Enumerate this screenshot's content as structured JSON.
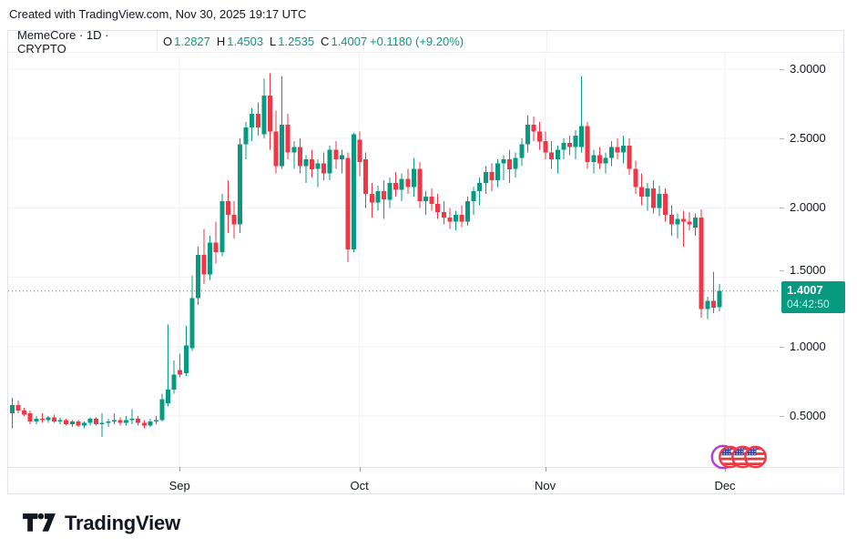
{
  "caption": "Created with TradingView.com, Nov 30, 2025 19:17 UTC",
  "legend": {
    "symbol": "MemeCore · 1D · CRYPTO",
    "ohlc": [
      {
        "label": "O",
        "value": "1.2827"
      },
      {
        "label": "H",
        "value": "1.4503"
      },
      {
        "label": "L",
        "value": "1.2535"
      },
      {
        "label": "C",
        "value": "1.4007"
      }
    ],
    "change": "+0.1180 (+9.20%)"
  },
  "price_scale": {
    "labels": [
      "3.0000",
      "2.5000",
      "2.0000",
      "1.5000",
      "1.0000",
      "0.5000"
    ],
    "current_price": "1.4007",
    "countdown": "04:42:50"
  },
  "time_scale": {
    "labels": [
      "Sep",
      "Oct",
      "Nov",
      "Dec"
    ]
  },
  "footer": {
    "brand": "TradingView"
  },
  "colors": {
    "up": "#089981",
    "down": "#F23645",
    "text": "#131722",
    "grid": "#f0f2f6",
    "border": "#e0e3eb",
    "flag_ring": "#F23645",
    "flag_back_ring": "#B23BDB",
    "flag_blue": "#2E42A5",
    "flag_red": "#E03C3C"
  },
  "event_markers": {
    "icon": "us-flag",
    "count": 3
  },
  "chart_data": {
    "type": "candlestick",
    "title": "MemeCore",
    "interval": "1D",
    "market": "CRYPTO",
    "current_price": 1.4007,
    "countdown": "04:42:50",
    "change_abs": 0.118,
    "change_pct": 9.2,
    "ylim": [
      0.26,
      3.12
    ],
    "y_ticks": [
      3.0,
      2.5,
      2.0,
      1.5,
      1.0,
      0.5
    ],
    "x_month_labels": [
      "Sep",
      "Oct",
      "Nov",
      "Dec"
    ],
    "grid": true,
    "columns": [
      "date",
      "open",
      "high",
      "low",
      "close"
    ],
    "candles": [
      [
        "2025-08-04",
        0.52,
        0.63,
        0.41,
        0.58
      ],
      [
        "2025-08-05",
        0.58,
        0.61,
        0.52,
        0.54
      ],
      [
        "2025-08-06",
        0.54,
        0.56,
        0.5,
        0.51
      ],
      [
        "2025-08-07",
        0.52,
        0.54,
        0.44,
        0.46
      ],
      [
        "2025-08-08",
        0.46,
        0.5,
        0.44,
        0.48
      ],
      [
        "2025-08-09",
        0.48,
        0.52,
        0.45,
        0.47
      ],
      [
        "2025-08-10",
        0.47,
        0.5,
        0.45,
        0.49
      ],
      [
        "2025-08-11",
        0.49,
        0.51,
        0.45,
        0.46
      ],
      [
        "2025-08-12",
        0.46,
        0.49,
        0.44,
        0.47
      ],
      [
        "2025-08-13",
        0.47,
        0.48,
        0.43,
        0.44
      ],
      [
        "2025-08-14",
        0.44,
        0.47,
        0.42,
        0.46
      ],
      [
        "2025-08-15",
        0.46,
        0.47,
        0.42,
        0.43
      ],
      [
        "2025-08-16",
        0.43,
        0.46,
        0.41,
        0.45
      ],
      [
        "2025-08-17",
        0.45,
        0.49,
        0.43,
        0.48
      ],
      [
        "2025-08-18",
        0.48,
        0.49,
        0.43,
        0.44
      ],
      [
        "2025-08-19",
        0.44,
        0.52,
        0.35,
        0.45
      ],
      [
        "2025-08-20",
        0.45,
        0.48,
        0.42,
        0.46
      ],
      [
        "2025-08-21",
        0.46,
        0.52,
        0.44,
        0.47
      ],
      [
        "2025-08-22",
        0.47,
        0.49,
        0.43,
        0.45
      ],
      [
        "2025-08-23",
        0.45,
        0.5,
        0.43,
        0.47
      ],
      [
        "2025-08-24",
        0.47,
        0.55,
        0.44,
        0.48
      ],
      [
        "2025-08-25",
        0.48,
        0.5,
        0.43,
        0.45
      ],
      [
        "2025-08-26",
        0.45,
        0.47,
        0.41,
        0.43
      ],
      [
        "2025-08-27",
        0.43,
        0.48,
        0.42,
        0.46
      ],
      [
        "2025-08-28",
        0.46,
        0.5,
        0.44,
        0.47
      ],
      [
        "2025-08-29",
        0.47,
        0.66,
        0.46,
        0.62
      ],
      [
        "2025-08-30",
        0.59,
        1.16,
        0.57,
        0.69
      ],
      [
        "2025-08-31",
        0.69,
        0.9,
        0.66,
        0.8
      ],
      [
        "2025-09-01",
        0.83,
        0.95,
        0.78,
        0.8
      ],
      [
        "2025-09-02",
        0.81,
        1.15,
        0.79,
        1.01
      ],
      [
        "2025-09-03",
        0.99,
        1.51,
        0.97,
        1.35
      ],
      [
        "2025-09-04",
        1.35,
        1.72,
        1.3,
        1.66
      ],
      [
        "2025-09-05",
        1.66,
        1.85,
        1.45,
        1.52
      ],
      [
        "2025-09-06",
        1.52,
        1.8,
        1.48,
        1.75
      ],
      [
        "2025-09-07",
        1.75,
        1.9,
        1.6,
        1.68
      ],
      [
        "2025-09-08",
        1.68,
        2.1,
        1.65,
        2.05
      ],
      [
        "2025-09-09",
        2.05,
        2.2,
        1.82,
        1.95
      ],
      [
        "2025-09-10",
        1.95,
        2.05,
        1.78,
        1.88
      ],
      [
        "2025-09-11",
        1.88,
        2.5,
        1.82,
        2.46
      ],
      [
        "2025-09-12",
        2.46,
        2.62,
        2.35,
        2.58
      ],
      [
        "2025-09-13",
        2.58,
        2.72,
        2.48,
        2.68
      ],
      [
        "2025-09-14",
        2.68,
        2.76,
        2.52,
        2.58
      ],
      [
        "2025-09-15",
        2.53,
        2.93,
        2.5,
        2.81
      ],
      [
        "2025-09-16",
        2.81,
        2.97,
        2.42,
        2.55
      ],
      [
        "2025-09-17",
        2.55,
        2.7,
        2.25,
        2.3
      ],
      [
        "2025-09-18",
        2.3,
        2.95,
        2.28,
        2.6
      ],
      [
        "2025-09-19",
        2.6,
        2.68,
        2.35,
        2.4
      ],
      [
        "2025-09-20",
        2.4,
        2.48,
        2.28,
        2.44
      ],
      [
        "2025-09-21",
        2.44,
        2.5,
        2.25,
        2.3
      ],
      [
        "2025-09-22",
        2.3,
        2.38,
        2.18,
        2.35
      ],
      [
        "2025-09-23",
        2.35,
        2.42,
        2.22,
        2.28
      ],
      [
        "2025-09-24",
        2.28,
        2.35,
        2.15,
        2.32
      ],
      [
        "2025-09-25",
        2.32,
        2.4,
        2.2,
        2.25
      ],
      [
        "2025-09-26",
        2.25,
        2.45,
        2.2,
        2.42
      ],
      [
        "2025-09-27",
        2.42,
        2.48,
        2.28,
        2.35
      ],
      [
        "2025-09-28",
        2.35,
        2.42,
        2.25,
        2.38
      ],
      [
        "2025-09-29",
        2.36,
        2.4,
        1.61,
        1.7
      ],
      [
        "2025-09-30",
        1.7,
        2.54,
        1.68,
        2.53
      ],
      [
        "2025-10-01",
        2.49,
        2.55,
        2.23,
        2.33
      ],
      [
        "2025-10-02",
        2.35,
        2.4,
        2.0,
        2.1
      ],
      [
        "2025-10-03",
        2.1,
        2.18,
        1.93,
        2.04
      ],
      [
        "2025-10-04",
        2.04,
        2.16,
        1.98,
        2.12
      ],
      [
        "2025-10-05",
        2.12,
        2.2,
        1.92,
        2.06
      ],
      [
        "2025-10-06",
        2.06,
        2.22,
        2.0,
        2.18
      ],
      [
        "2025-10-07",
        2.18,
        2.26,
        2.08,
        2.13
      ],
      [
        "2025-10-08",
        2.13,
        2.25,
        2.05,
        2.21
      ],
      [
        "2025-10-09",
        2.21,
        2.28,
        2.1,
        2.15
      ],
      [
        "2025-10-10",
        2.15,
        2.36,
        2.08,
        2.28
      ],
      [
        "2025-10-11",
        2.28,
        2.33,
        2.0,
        2.05
      ],
      [
        "2025-10-12",
        2.05,
        2.12,
        1.95,
        2.08
      ],
      [
        "2025-10-13",
        2.08,
        2.14,
        1.98,
        2.03
      ],
      [
        "2025-10-14",
        2.03,
        2.1,
        1.92,
        1.97
      ],
      [
        "2025-10-15",
        1.97,
        2.05,
        1.88,
        1.93
      ],
      [
        "2025-10-16",
        1.93,
        2.0,
        1.85,
        1.9
      ],
      [
        "2025-10-17",
        1.9,
        1.98,
        1.84,
        1.95
      ],
      [
        "2025-10-18",
        1.95,
        2.02,
        1.86,
        1.9
      ],
      [
        "2025-10-19",
        1.9,
        2.08,
        1.87,
        2.05
      ],
      [
        "2025-10-20",
        2.05,
        2.15,
        1.95,
        2.12
      ],
      [
        "2025-10-21",
        2.12,
        2.22,
        2.02,
        2.18
      ],
      [
        "2025-10-22",
        2.18,
        2.3,
        2.1,
        2.26
      ],
      [
        "2025-10-23",
        2.26,
        2.32,
        2.12,
        2.2
      ],
      [
        "2025-10-24",
        2.2,
        2.35,
        2.15,
        2.32
      ],
      [
        "2025-10-25",
        2.32,
        2.38,
        2.2,
        2.35
      ],
      [
        "2025-10-26",
        2.35,
        2.42,
        2.18,
        2.28
      ],
      [
        "2025-10-27",
        2.28,
        2.4,
        2.22,
        2.36
      ],
      [
        "2025-10-28",
        2.36,
        2.5,
        2.3,
        2.46
      ],
      [
        "2025-10-29",
        2.46,
        2.67,
        2.4,
        2.6
      ],
      [
        "2025-10-30",
        2.6,
        2.66,
        2.48,
        2.55
      ],
      [
        "2025-10-31",
        2.55,
        2.62,
        2.42,
        2.48
      ],
      [
        "2025-11-01",
        2.48,
        2.55,
        2.35,
        2.4
      ],
      [
        "2025-11-02",
        2.4,
        2.48,
        2.28,
        2.35
      ],
      [
        "2025-11-03",
        2.35,
        2.45,
        2.25,
        2.42
      ],
      [
        "2025-11-04",
        2.42,
        2.5,
        2.35,
        2.47
      ],
      [
        "2025-11-05",
        2.47,
        2.52,
        2.38,
        2.44
      ],
      [
        "2025-11-06",
        2.44,
        2.56,
        2.35,
        2.52
      ],
      [
        "2025-11-07",
        2.44,
        2.95,
        2.4,
        2.59
      ],
      [
        "2025-11-08",
        2.59,
        2.62,
        2.28,
        2.33
      ],
      [
        "2025-11-09",
        2.33,
        2.42,
        2.25,
        2.38
      ],
      [
        "2025-11-10",
        2.38,
        2.44,
        2.28,
        2.32
      ],
      [
        "2025-11-11",
        2.32,
        2.4,
        2.25,
        2.36
      ],
      [
        "2025-11-12",
        2.36,
        2.48,
        2.3,
        2.44
      ],
      [
        "2025-11-13",
        2.44,
        2.5,
        2.35,
        2.4
      ],
      [
        "2025-11-14",
        2.4,
        2.52,
        2.32,
        2.45
      ],
      [
        "2025-11-15",
        2.45,
        2.5,
        2.24,
        2.28
      ],
      [
        "2025-11-16",
        2.28,
        2.34,
        2.1,
        2.15
      ],
      [
        "2025-11-17",
        2.15,
        2.25,
        2.02,
        2.08
      ],
      [
        "2025-11-18",
        2.08,
        2.18,
        1.98,
        2.14
      ],
      [
        "2025-11-19",
        2.14,
        2.2,
        1.96,
        2.0
      ],
      [
        "2025-11-20",
        2.0,
        2.16,
        1.94,
        2.1
      ],
      [
        "2025-11-21",
        2.1,
        2.14,
        1.9,
        1.95
      ],
      [
        "2025-11-22",
        1.95,
        2.02,
        1.8,
        1.88
      ],
      [
        "2025-11-23",
        1.88,
        1.96,
        1.78,
        1.92
      ],
      [
        "2025-11-24",
        1.92,
        1.98,
        1.72,
        1.9
      ],
      [
        "2025-11-25",
        1.9,
        1.97,
        1.84,
        1.88
      ],
      [
        "2025-11-26",
        1.86,
        1.96,
        1.8,
        1.93
      ],
      [
        "2025-11-27",
        1.93,
        1.99,
        1.21,
        1.27
      ],
      [
        "2025-11-28",
        1.27,
        1.36,
        1.2,
        1.33
      ],
      [
        "2025-11-29",
        1.33,
        1.54,
        1.24,
        1.28
      ],
      [
        "2025-11-30",
        1.2827,
        1.4503,
        1.2535,
        1.4007
      ]
    ]
  }
}
